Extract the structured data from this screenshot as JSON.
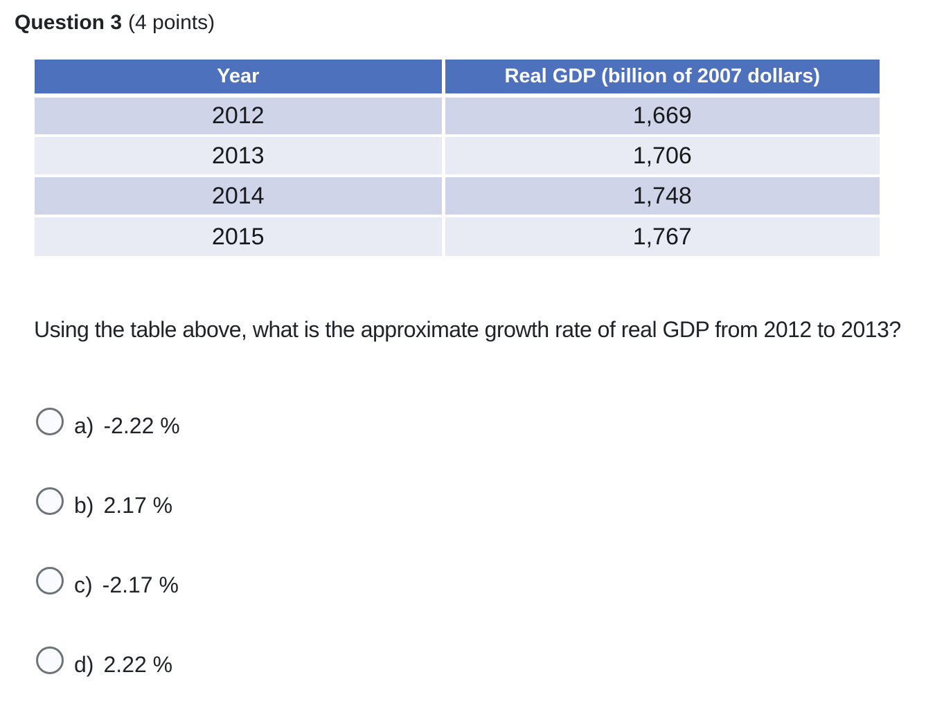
{
  "question": {
    "label": "Question 3",
    "points": "(4 points)",
    "prompt": "Using the table above, what is the approximate growth rate of real GDP from 2012 to 2013?"
  },
  "table": {
    "headers": [
      "Year",
      "Real GDP (billion of 2007 dollars)"
    ],
    "rows": [
      [
        "2012",
        "1,669"
      ],
      [
        "2013",
        "1,706"
      ],
      [
        "2014",
        "1,748"
      ],
      [
        "2015",
        "1,767"
      ]
    ]
  },
  "options": [
    {
      "label": "a)",
      "value": "-2.22 %",
      "selected": false
    },
    {
      "label": "b)",
      "value": "2.17 %",
      "selected": false
    },
    {
      "label": "c)",
      "value": "-2.17 %",
      "selected": false
    },
    {
      "label": "d)",
      "value": "2.22 %",
      "selected": false
    }
  ],
  "colors": {
    "header_bg": "#4D71BC",
    "row_odd": "#CFD4E8",
    "row_even": "#E9EBF4",
    "header_text": "#FFFFFF",
    "body_text": "#1F2226"
  }
}
